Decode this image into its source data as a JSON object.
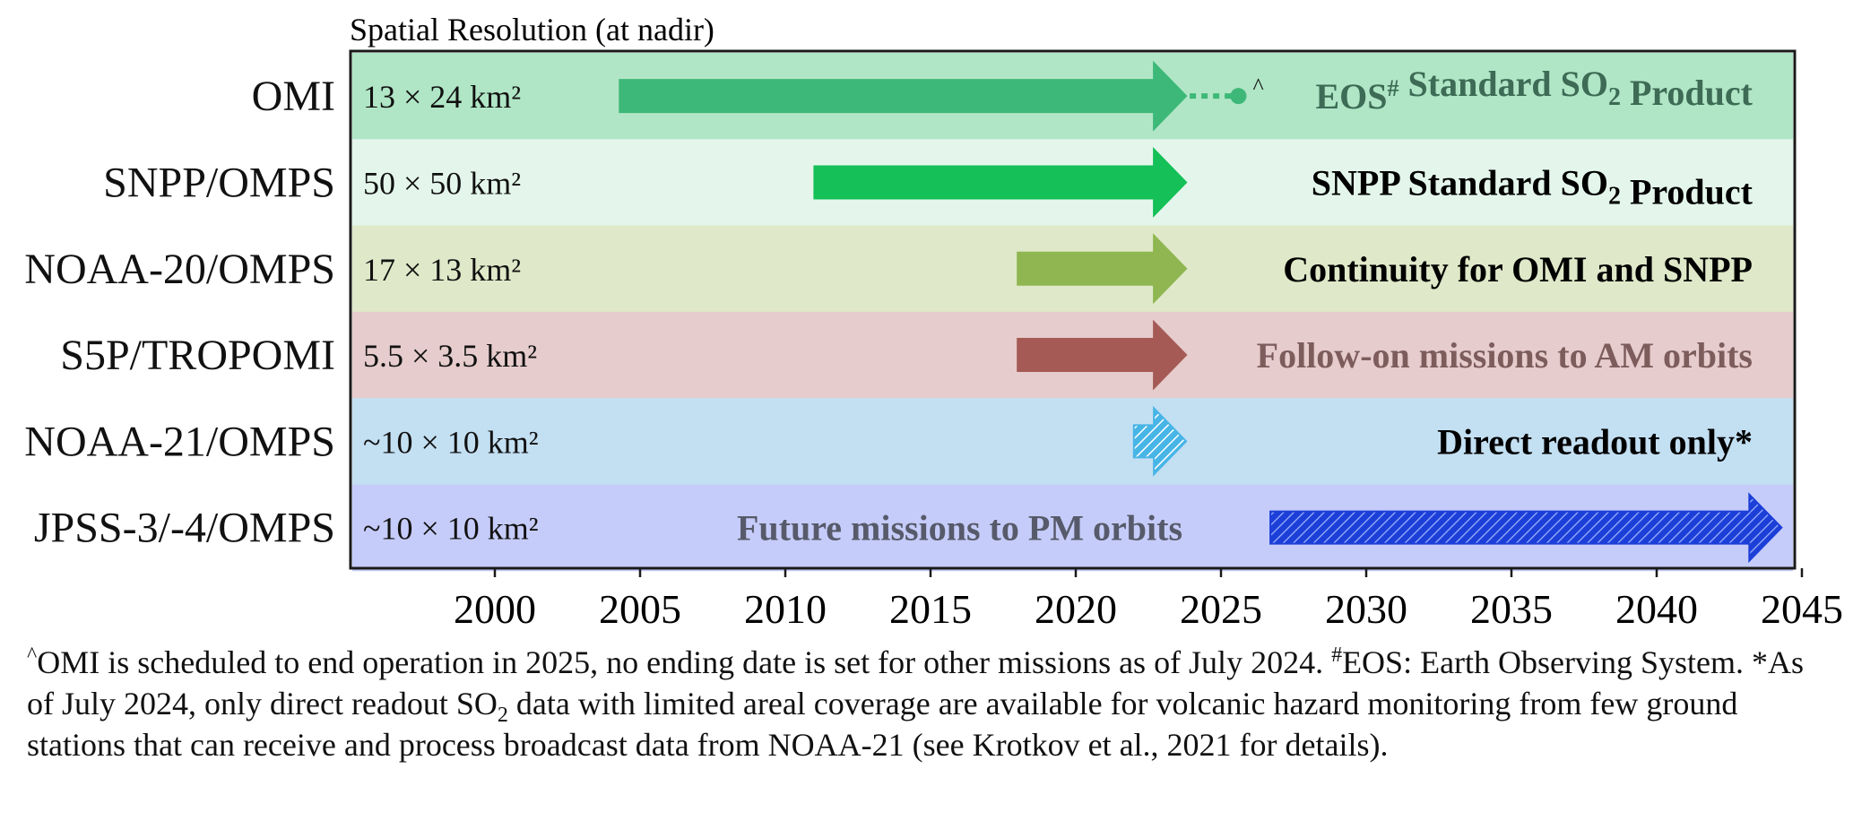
{
  "chart_data": {
    "type": "timeline",
    "header": "Spatial Resolution (at nadir)",
    "x_axis": {
      "min": 1995,
      "max": 2045,
      "ticks": [
        2000,
        2005,
        2010,
        2015,
        2020,
        2025,
        2030,
        2035,
        2040,
        2045
      ]
    },
    "rows": [
      {
        "name": "OMI",
        "resolution": "13 × 24 km²",
        "start": 2004.3,
        "end": 2023.8,
        "style": "solid",
        "color": "#3db878",
        "band": "#b0e6c6",
        "extension": {
          "from": 2023.8,
          "to": 2025.6,
          "marker": "^"
        },
        "note_parts": [
          "EOS",
          "#",
          " Standard SO",
          "2",
          " Product"
        ],
        "note_color": "#3d6b55"
      },
      {
        "name": "SNPP/OMPS",
        "resolution": "50 × 50 km²",
        "start": 2011.0,
        "end": 2023.8,
        "style": "solid",
        "color": "#14c057",
        "band": "#e4f6ec",
        "note_parts": [
          "SNPP Standard SO",
          "2",
          " Product"
        ],
        "note_color": "#000000"
      },
      {
        "name": "NOAA-20/OMPS",
        "resolution": "17 × 13 km²",
        "start": 2018.0,
        "end": 2023.8,
        "style": "solid",
        "color": "#8fb650",
        "band": "#dfe8c8",
        "note_parts": [
          "Continuity for OMI and SNPP"
        ],
        "note_color": "#000000"
      },
      {
        "name": "S5P/TROPOMI",
        "resolution": "5.5 × 3.5 km²",
        "start": 2018.0,
        "end": 2023.8,
        "style": "solid",
        "color": "#a55a55",
        "band": "#e6cccc",
        "note_parts": [
          "Follow-on missions to AM orbits"
        ],
        "note_color": "#7d5c5c"
      },
      {
        "name": "NOAA-21/OMPS",
        "resolution": "~10 × 10 km²",
        "start": 2022.0,
        "end": 2023.8,
        "style": "hatched",
        "color": "#47b5e6",
        "band": "#c3dff2",
        "note_parts": [
          "Direct readout only*"
        ],
        "note_color": "#000000"
      },
      {
        "name": "JPSS-3/-4/OMPS",
        "resolution": "~10 × 10 km²",
        "start": 2026.7,
        "end": 2044.3,
        "style": "hatched",
        "color": "#1c3fd8",
        "band": "#c6ccf9",
        "note_parts": [
          "Future missions to PM orbits"
        ],
        "note_color": "#565a6a",
        "note_anchor": "start"
      }
    ]
  },
  "caption": {
    "marker_caret": "^",
    "text1": "OMI is scheduled to end operation in 2025, no ending date is set for other missions as of July 2024. ",
    "marker_hash": "#",
    "text2": "EOS: Earth Observing System. *As of July 2024, only direct readout SO",
    "sub2": "2",
    "text3": " data with limited areal coverage are available for volcanic hazard monitoring from few ground stations that can receive and process broadcast data from NOAA-21 (see Krotkov et al., 2021 for details)."
  }
}
